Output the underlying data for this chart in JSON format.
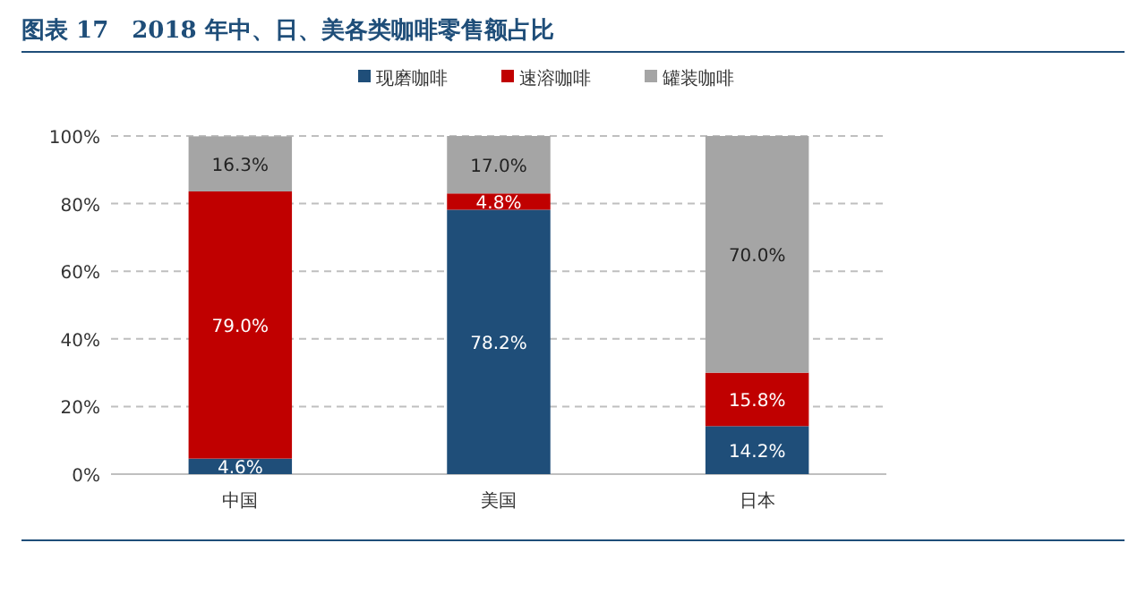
{
  "chart_data": {
    "type": "bar",
    "title": "图表 17　2018 年中、日、美各类咖啡零售额占比",
    "categories": [
      "中国",
      "美国",
      "日本"
    ],
    "stacked": true,
    "legend": "top",
    "grid": "y",
    "ylim": [
      0,
      100
    ],
    "yticks": [
      {
        "value": 0,
        "label": "0%"
      },
      {
        "value": 20,
        "label": "20%"
      },
      {
        "value": 40,
        "label": "40%"
      },
      {
        "value": 60,
        "label": "60%"
      },
      {
        "value": 80,
        "label": "80%"
      },
      {
        "value": 100,
        "label": "100%"
      }
    ],
    "series": [
      {
        "name": "现磨咖啡",
        "color": "#1f4e79",
        "values": [
          4.6,
          78.2,
          14.2
        ],
        "value_labels": [
          "4.6%",
          "78.2%",
          "14.2%"
        ]
      },
      {
        "name": "速溶咖啡",
        "color": "#c00000",
        "values": [
          79.0,
          4.8,
          15.8
        ],
        "value_labels": [
          "79.0%",
          "4.8%",
          "15.8%"
        ]
      },
      {
        "name": "罐装咖啡",
        "color": "#a5a5a5",
        "values": [
          16.3,
          17.0,
          70.0
        ],
        "value_labels": [
          "16.3%",
          "17.0%",
          "70.0%"
        ]
      }
    ]
  }
}
